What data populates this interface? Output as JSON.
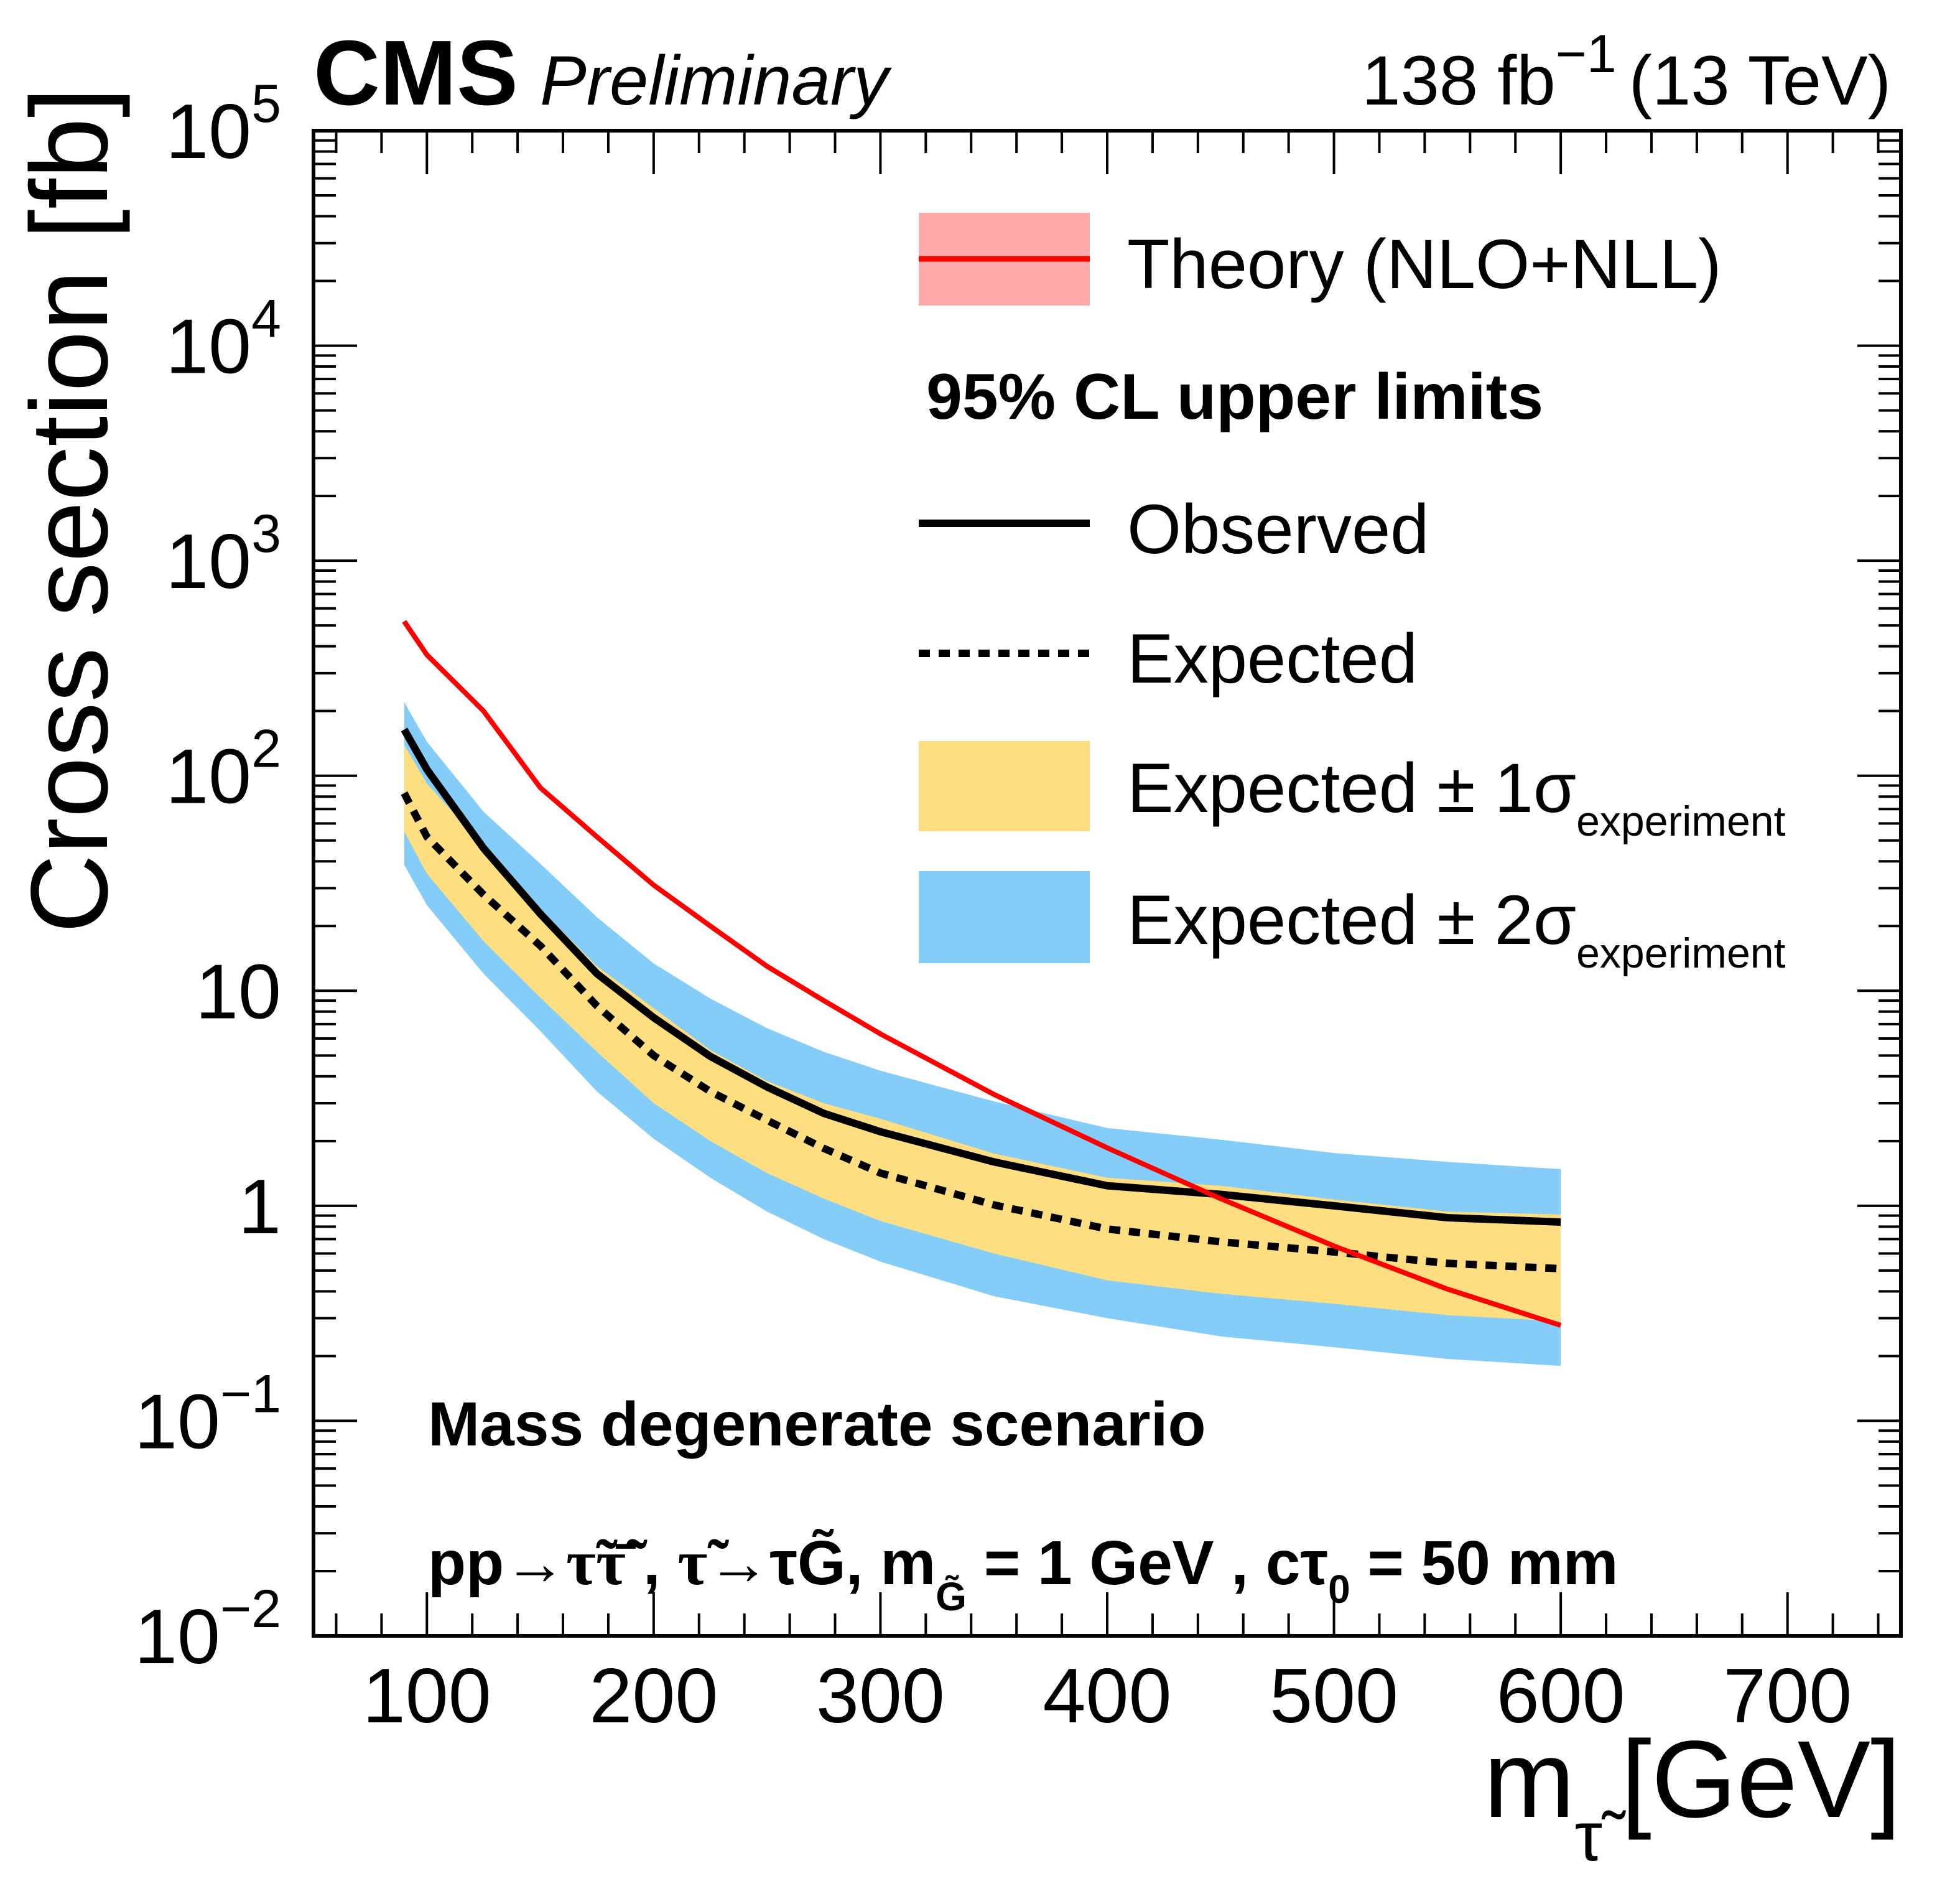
{
  "header": {
    "experiment": "CMS",
    "status": "Preliminary",
    "lumi_value": "138 fb",
    "lumi_exp": "−1",
    "energy": "(13 TeV)"
  },
  "legend": {
    "theory": "Theory (NLO+NLL)",
    "heading": "95% CL upper limits",
    "observed": "Observed",
    "expected": "Expected",
    "band1_main": "Expected ± 1σ",
    "band1_sub": "experiment",
    "band2_main": "Expected ± 2σ",
    "band2_sub": "experiment"
  },
  "annotations": {
    "scenario": "Mass degenerate scenario",
    "process_pp": "pp→",
    "process_stau": "τ̃τ̃̄",
    "process_sep1": " , ",
    "decay_stau": "τ̃",
    "decay_arrow": "→τ",
    "decay_G": "G̃",
    "mass_m": ", m",
    "mass_sub": "G̃",
    "mass_val": " = 1 GeV , c",
    "ctau_tau": "τ",
    "ctau_sub": "0",
    "ctau_val": " = 50 mm"
  },
  "chart_data": {
    "type": "line",
    "title": "CMS Preliminary",
    "subtitle": "138 fb^-1 (13 TeV)",
    "xlabel": "m_stau [GeV]",
    "xlabel_main": "m",
    "xlabel_sub": "τ̃",
    "xlabel_unit": "[GeV]",
    "ylabel": "Cross section [fb]",
    "xlim": [
      50,
      750
    ],
    "ylim": [
      0.01,
      100000
    ],
    "yscale": "log",
    "grid": false,
    "legend_position": "top-right",
    "x_ticks": [
      100,
      200,
      300,
      400,
      500,
      600,
      700
    ],
    "x_tick_labels": [
      "100",
      "200",
      "300",
      "400",
      "500",
      "600",
      "700"
    ],
    "y_ticks": [
      {
        "value": 100000,
        "base": "10",
        "exp": "5"
      },
      {
        "value": 10000,
        "base": "10",
        "exp": "4"
      },
      {
        "value": 1000,
        "base": "10",
        "exp": "3"
      },
      {
        "value": 100,
        "base": "10",
        "exp": "2"
      },
      {
        "value": 10,
        "base": "10",
        "exp": ""
      },
      {
        "value": 1,
        "base": "1",
        "exp": ""
      },
      {
        "value": 0.1,
        "base": "10",
        "exp": "−1"
      },
      {
        "value": 0.01,
        "base": "10",
        "exp": "−2"
      }
    ],
    "x": [
      90,
      100,
      125,
      150,
      175,
      200,
      225,
      250,
      275,
      300,
      350,
      400,
      450,
      500,
      550,
      600
    ],
    "series": [
      {
        "name": "Theory (NLO+NLL)",
        "color": "#ff0000",
        "values": [
          522,
          365,
          200,
          88,
          52,
          31,
          20,
          13,
          9.0,
          6.3,
          3.3,
          1.86,
          1.08,
          0.65,
          0.41,
          0.278
        ]
      },
      {
        "name": "Observed",
        "color": "#000000",
        "values": [
          164,
          107,
          46,
          22.8,
          12,
          7.5,
          4.95,
          3.57,
          2.69,
          2.21,
          1.6,
          1.24,
          1.13,
          1.0,
          0.88,
          0.84
        ]
      },
      {
        "name": "Expected",
        "color": "#000000",
        "values": [
          83,
          52,
          28,
          16.2,
          8.5,
          5.0,
          3.4,
          2.5,
          1.85,
          1.42,
          1.01,
          0.78,
          0.68,
          0.61,
          0.54,
          0.51
        ]
      }
    ],
    "bands": [
      {
        "name": "Expected ± 2σ experiment",
        "color": "#85cdf9",
        "upper": [
          220,
          144,
          68,
          39,
          22,
          13.4,
          9.2,
          6.7,
          5.2,
          4.25,
          3.06,
          2.3,
          2.03,
          1.76,
          1.6,
          1.48
        ],
        "lower": [
          38.5,
          25,
          12,
          6.5,
          3.4,
          2.05,
          1.35,
          0.94,
          0.7,
          0.55,
          0.38,
          0.3,
          0.247,
          0.22,
          0.194,
          0.18
        ]
      },
      {
        "name": "Expected ± 1σ experiment",
        "color": "#fdde80",
        "upper": [
          139,
          92,
          47,
          24,
          13,
          8.3,
          5.3,
          3.8,
          3.0,
          2.54,
          1.75,
          1.35,
          1.24,
          1.07,
          0.94,
          0.91
        ],
        "lower": [
          55,
          35,
          17,
          9.3,
          5.2,
          3.0,
          2.0,
          1.42,
          1.08,
          0.85,
          0.6,
          0.45,
          0.39,
          0.35,
          0.31,
          0.29
        ]
      }
    ],
    "theory_band_color": "#ffaaaa"
  }
}
